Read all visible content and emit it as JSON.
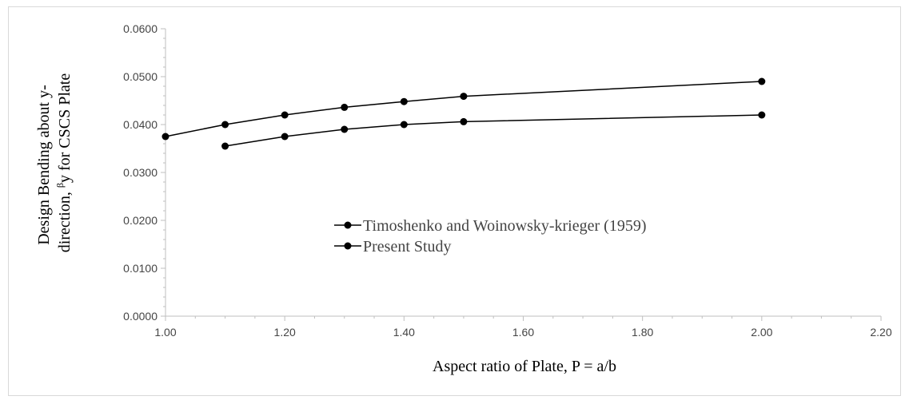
{
  "chart_data": {
    "type": "line",
    "title": "",
    "xlabel": "Aspect ratio of Plate, P = a/b",
    "ylabel_line1": "Design Bending  about y-",
    "ylabel_line2_pre": "direction, ",
    "ylabel_sup": "β",
    "ylabel_line2_post": "y for CSCS Plate",
    "xlim": [
      1.0,
      2.2
    ],
    "ylim": [
      0.0,
      0.06
    ],
    "x_ticks": [
      "1.00",
      "1.20",
      "1.40",
      "1.60",
      "1.80",
      "2.00",
      "2.20"
    ],
    "x_tick_values": [
      1.0,
      1.2,
      1.4,
      1.6,
      1.8,
      2.0,
      2.2
    ],
    "y_ticks": [
      "0.0000",
      "0.0100",
      "0.0200",
      "0.0300",
      "0.0400",
      "0.0500",
      "0.0600"
    ],
    "y_tick_values": [
      0.0,
      0.01,
      0.02,
      0.03,
      0.04,
      0.05,
      0.06
    ],
    "grid": false,
    "legend_position": "center",
    "series": [
      {
        "name": "Timoshenko and Woinowsky-krieger (1959)",
        "color": "#000000",
        "x": [
          1.0,
          1.1,
          1.2,
          1.3,
          1.4,
          1.5,
          2.0
        ],
        "y": [
          0.0375,
          0.04,
          0.042,
          0.0436,
          0.0448,
          0.0459,
          0.049
        ]
      },
      {
        "name": "Present Study",
        "color": "#000000",
        "x": [
          1.1,
          1.2,
          1.3,
          1.4,
          1.5,
          2.0
        ],
        "y": [
          0.0355,
          0.0375,
          0.039,
          0.04,
          0.0406,
          0.042
        ]
      }
    ]
  }
}
